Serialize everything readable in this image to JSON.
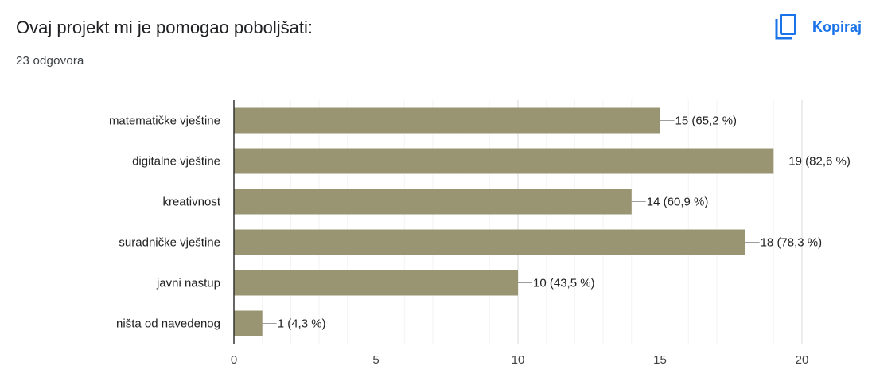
{
  "header": {
    "title": "Ovaj projekt mi je pomogao poboljšati:",
    "subtitle": "23 odgovora",
    "copy_label": "Kopiraj",
    "copy_icon": "copy-icon",
    "accent_color": "#1a73e8"
  },
  "chart_data": {
    "type": "bar",
    "orientation": "horizontal",
    "categories": [
      "matematičke vještine",
      "digitalne vještine",
      "kreativnost",
      "suradničke vještine",
      "javni nastup",
      "ništa od navedenog"
    ],
    "values": [
      15,
      19,
      14,
      18,
      10,
      1
    ],
    "data_labels": [
      "15 (65,2 %)",
      "19 (82,6 %)",
      "14 (60,9 %)",
      "18 (78,3 %)",
      "10 (43,5 %)",
      "1 (4,3 %)"
    ],
    "xlim": [
      0,
      20
    ],
    "xticks": [
      0,
      5,
      10,
      15,
      20
    ],
    "grid": true,
    "bar_color": "#999472",
    "title": "",
    "xlabel": "",
    "ylabel": ""
  }
}
